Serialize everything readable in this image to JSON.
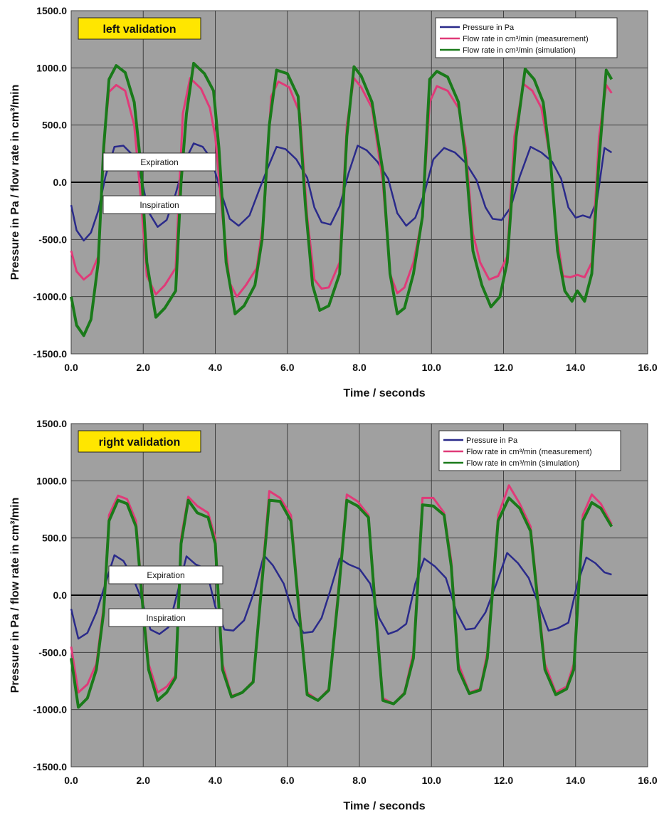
{
  "chart_data": [
    {
      "type": "line",
      "title": "",
      "annotation_box": "left validation",
      "xlabel": "Time / seconds",
      "ylabel": "Pressure in Pa  /  flow rate in cm³/min",
      "xlim": [
        0,
        16
      ],
      "ylim": [
        -1500,
        1500
      ],
      "xticks": [
        "0.0",
        "2.0",
        "4.0",
        "6.0",
        "8.0",
        "10.0",
        "12.0",
        "14.0",
        "16.0"
      ],
      "yticks": [
        "1500.0",
        "1000.0",
        "500.0",
        "0.0",
        "-500.0",
        "-1000.0",
        "-1500.0"
      ],
      "grid": true,
      "legend_position": "top-right",
      "region_labels": {
        "expiration": "Expiration",
        "inspiration": "Inspiration"
      },
      "series": [
        {
          "name": "Pressure in Pa",
          "color": "#2a2a8a",
          "x": [
            0,
            0.15,
            0.35,
            0.55,
            0.75,
            0.95,
            1.2,
            1.45,
            1.7,
            1.95,
            2.15,
            2.4,
            2.65,
            2.9,
            3.15,
            3.4,
            3.65,
            3.9,
            4.15,
            4.4,
            4.65,
            4.95,
            5.25,
            5.45,
            5.7,
            5.95,
            6.25,
            6.55,
            6.75,
            6.95,
            7.2,
            7.45,
            7.7,
            7.95,
            8.2,
            8.5,
            8.8,
            9.05,
            9.3,
            9.55,
            9.8,
            10.05,
            10.35,
            10.65,
            10.95,
            11.25,
            11.5,
            11.7,
            11.95,
            12.2,
            12.45,
            12.75,
            13.05,
            13.35,
            13.6,
            13.8,
            14.0,
            14.2,
            14.4,
            14.6,
            14.8,
            15.0
          ],
          "y": [
            -200,
            -420,
            -510,
            -440,
            -250,
            50,
            310,
            320,
            240,
            30,
            -260,
            -390,
            -330,
            -100,
            180,
            340,
            310,
            200,
            -80,
            -320,
            -380,
            -290,
            -40,
            120,
            310,
            290,
            200,
            40,
            -220,
            -350,
            -370,
            -210,
            80,
            320,
            280,
            180,
            30,
            -270,
            -380,
            -310,
            -100,
            200,
            300,
            260,
            170,
            20,
            -220,
            -320,
            -330,
            -220,
            50,
            310,
            260,
            180,
            30,
            -220,
            -310,
            -290,
            -310,
            -150,
            300,
            260
          ]
        },
        {
          "name": "Flow rate in cm³/min (measurement)",
          "color": "#e03a78",
          "x": [
            0,
            0.15,
            0.35,
            0.55,
            0.75,
            0.95,
            1.05,
            1.25,
            1.5,
            1.75,
            1.95,
            2.1,
            2.35,
            2.6,
            2.9,
            3.1,
            3.3,
            3.6,
            3.85,
            4.0,
            4.2,
            4.4,
            4.6,
            4.85,
            5.15,
            5.35,
            5.55,
            5.75,
            6.05,
            6.35,
            6.55,
            6.75,
            6.95,
            7.15,
            7.45,
            7.65,
            7.85,
            8.05,
            8.35,
            8.65,
            8.85,
            9.05,
            9.25,
            9.5,
            9.75,
            9.95,
            10.15,
            10.45,
            10.75,
            10.95,
            11.15,
            11.35,
            11.6,
            11.85,
            12.1,
            12.3,
            12.55,
            12.8,
            13.05,
            13.3,
            13.45,
            13.65,
            13.85,
            14.05,
            14.25,
            14.45,
            14.65,
            14.85,
            15.0
          ],
          "y": [
            -600,
            -780,
            -850,
            -800,
            -650,
            500,
            790,
            850,
            800,
            500,
            -200,
            -820,
            -980,
            -900,
            -750,
            600,
            910,
            820,
            650,
            400,
            -300,
            -880,
            -1000,
            -900,
            -750,
            -300,
            750,
            880,
            830,
            600,
            -300,
            -850,
            -930,
            -920,
            -700,
            500,
            910,
            830,
            650,
            0,
            -800,
            -970,
            -920,
            -700,
            -300,
            700,
            840,
            800,
            650,
            300,
            -450,
            -700,
            -850,
            -820,
            -650,
            400,
            860,
            800,
            650,
            200,
            -400,
            -820,
            -830,
            -810,
            -830,
            -700,
            400,
            850,
            780
          ]
        },
        {
          "name": "Flow rate in cm³/min (simulation)",
          "color": "#1a7a1a",
          "x": [
            0,
            0.15,
            0.35,
            0.55,
            0.75,
            0.9,
            1.05,
            1.25,
            1.5,
            1.75,
            1.95,
            2.1,
            2.35,
            2.6,
            2.9,
            3.05,
            3.2,
            3.4,
            3.7,
            3.95,
            4.1,
            4.3,
            4.55,
            4.8,
            5.1,
            5.3,
            5.5,
            5.7,
            6.0,
            6.3,
            6.5,
            6.7,
            6.9,
            7.15,
            7.45,
            7.65,
            7.85,
            8.05,
            8.35,
            8.65,
            8.85,
            9.05,
            9.25,
            9.5,
            9.75,
            9.95,
            10.15,
            10.45,
            10.75,
            10.95,
            11.15,
            11.4,
            11.65,
            11.9,
            12.1,
            12.35,
            12.6,
            12.85,
            13.1,
            13.3,
            13.5,
            13.7,
            13.9,
            14.05,
            14.25,
            14.45,
            14.65,
            14.85,
            15.0
          ],
          "y": [
            -1000,
            -1250,
            -1340,
            -1200,
            -700,
            300,
            900,
            1020,
            960,
            700,
            100,
            -700,
            -1180,
            -1100,
            -950,
            0,
            600,
            1040,
            950,
            800,
            300,
            -700,
            -1150,
            -1080,
            -900,
            -500,
            500,
            980,
            950,
            750,
            -200,
            -900,
            -1120,
            -1080,
            -800,
            400,
            1010,
            930,
            700,
            100,
            -800,
            -1150,
            -1100,
            -800,
            -300,
            900,
            970,
            920,
            700,
            200,
            -600,
            -900,
            -1090,
            -1000,
            -700,
            400,
            990,
            900,
            700,
            200,
            -600,
            -950,
            -1040,
            -950,
            -1040,
            -800,
            200,
            980,
            900
          ]
        }
      ]
    },
    {
      "type": "line",
      "title": "",
      "annotation_box": "right validation",
      "xlabel": "Time / seconds",
      "ylabel": "Pressure in Pa  /  flow rate in cm³/min",
      "xlim": [
        0,
        16
      ],
      "ylim": [
        -1500,
        1500
      ],
      "xticks": [
        "0.0",
        "2.0",
        "4.0",
        "6.0",
        "8.0",
        "10.0",
        "12.0",
        "14.0",
        "16.0"
      ],
      "yticks": [
        "1500.0",
        "1000.0",
        "500.0",
        "0.0",
        "-500.0",
        "-1000.0",
        "-1500.0"
      ],
      "grid": true,
      "legend_position": "top-right",
      "region_labels": {
        "expiration": "Expiration",
        "inspiration": "Inspiration"
      },
      "series": [
        {
          "name": "Pressure in Pa",
          "color": "#2a2a8a",
          "x": [
            0,
            0.2,
            0.45,
            0.7,
            0.95,
            1.2,
            1.45,
            1.7,
            1.95,
            2.2,
            2.45,
            2.7,
            2.95,
            3.2,
            3.45,
            3.75,
            4.0,
            4.25,
            4.5,
            4.8,
            5.1,
            5.35,
            5.6,
            5.9,
            6.2,
            6.45,
            6.7,
            6.95,
            7.2,
            7.45,
            7.7,
            8.0,
            8.3,
            8.55,
            8.8,
            9.05,
            9.3,
            9.55,
            9.8,
            10.1,
            10.4,
            10.7,
            10.95,
            11.2,
            11.5,
            11.8,
            12.1,
            12.4,
            12.7,
            13.0,
            13.25,
            13.5,
            13.8,
            14.05,
            14.3,
            14.55,
            14.8,
            15.0
          ],
          "y": [
            -120,
            -380,
            -330,
            -150,
            100,
            350,
            300,
            160,
            -30,
            -300,
            -340,
            -280,
            20,
            340,
            270,
            230,
            -100,
            -300,
            -310,
            -220,
            50,
            350,
            260,
            100,
            -200,
            -330,
            -320,
            -200,
            50,
            320,
            270,
            230,
            100,
            -200,
            -340,
            -310,
            -250,
            100,
            320,
            250,
            150,
            -150,
            -300,
            -290,
            -150,
            100,
            370,
            280,
            150,
            -100,
            -310,
            -290,
            -240,
            100,
            330,
            280,
            200,
            180
          ]
        },
        {
          "name": "Flow rate in cm³/min (measurement)",
          "color": "#e03a78",
          "x": [
            0,
            0.2,
            0.45,
            0.7,
            0.9,
            1.05,
            1.3,
            1.55,
            1.8,
            2.0,
            2.15,
            2.4,
            2.65,
            2.9,
            3.05,
            3.25,
            3.5,
            3.8,
            4.0,
            4.2,
            4.45,
            4.75,
            5.05,
            5.25,
            5.5,
            5.8,
            6.1,
            6.3,
            6.55,
            6.85,
            7.15,
            7.4,
            7.65,
            7.95,
            8.25,
            8.45,
            8.65,
            8.95,
            9.25,
            9.5,
            9.75,
            10.05,
            10.35,
            10.55,
            10.75,
            11.05,
            11.35,
            11.55,
            11.85,
            12.15,
            12.45,
            12.75,
            12.95,
            13.15,
            13.45,
            13.75,
            13.95,
            14.2,
            14.45,
            14.7,
            15.0
          ],
          "y": [
            -450,
            -850,
            -780,
            -600,
            -100,
            700,
            870,
            840,
            650,
            -100,
            -600,
            -850,
            -800,
            -700,
            500,
            860,
            780,
            720,
            500,
            -600,
            -880,
            -850,
            -750,
            0,
            910,
            850,
            700,
            0,
            -850,
            -920,
            -820,
            0,
            880,
            820,
            700,
            -100,
            -900,
            -950,
            -850,
            -500,
            850,
            850,
            720,
            300,
            -600,
            -850,
            -820,
            -500,
            700,
            960,
            800,
            600,
            0,
            -600,
            -850,
            -800,
            -600,
            700,
            880,
            800,
            620
          ]
        },
        {
          "name": "Flow rate in cm³/min (simulation)",
          "color": "#1a7a1a",
          "x": [
            0,
            0.2,
            0.45,
            0.7,
            0.9,
            1.05,
            1.3,
            1.55,
            1.8,
            2.0,
            2.15,
            2.4,
            2.65,
            2.9,
            3.05,
            3.25,
            3.5,
            3.8,
            4.0,
            4.2,
            4.45,
            4.75,
            5.05,
            5.25,
            5.5,
            5.8,
            6.1,
            6.3,
            6.55,
            6.85,
            7.15,
            7.4,
            7.65,
            7.95,
            8.25,
            8.45,
            8.65,
            8.95,
            9.25,
            9.5,
            9.75,
            10.05,
            10.35,
            10.55,
            10.75,
            11.05,
            11.35,
            11.55,
            11.85,
            12.15,
            12.45,
            12.75,
            12.95,
            13.15,
            13.45,
            13.75,
            13.95,
            14.2,
            14.45,
            14.7,
            15.0
          ],
          "y": [
            -550,
            -980,
            -900,
            -650,
            -150,
            650,
            830,
            800,
            600,
            -150,
            -650,
            -920,
            -850,
            -720,
            450,
            830,
            720,
            680,
            450,
            -650,
            -890,
            -850,
            -760,
            -50,
            830,
            820,
            650,
            -50,
            -870,
            -920,
            -830,
            -50,
            830,
            780,
            680,
            -150,
            -920,
            -950,
            -860,
            -550,
            790,
            780,
            700,
            250,
            -650,
            -860,
            -830,
            -550,
            650,
            850,
            760,
            560,
            -50,
            -650,
            -870,
            -820,
            -650,
            650,
            810,
            760,
            600
          ]
        }
      ]
    }
  ]
}
